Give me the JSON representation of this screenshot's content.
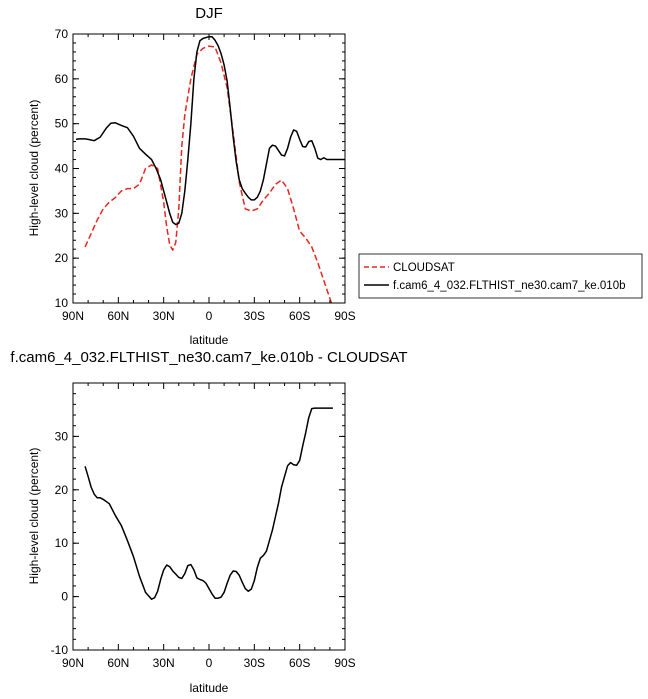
{
  "chart_data": [
    {
      "type": "line",
      "title": "DJF",
      "xlabel": "latitude",
      "ylabel": "High-level cloud (percent)",
      "xlim": [
        90,
        -90
      ],
      "ylim": [
        10,
        70
      ],
      "xticks": [
        90,
        60,
        30,
        0,
        -30,
        -60,
        -90
      ],
      "xtick_labels": [
        "90N",
        "60N",
        "30N",
        "0",
        "30S",
        "60S",
        "90S"
      ],
      "yticks": [
        10,
        20,
        30,
        40,
        50,
        60,
        70
      ],
      "ytick_labels": [
        "10",
        "20",
        "30",
        "40",
        "50",
        "60",
        "70"
      ],
      "legend_position": "right",
      "series": [
        {
          "name": "CLOUDSAT",
          "color": "#e8261e",
          "dash": "dashed",
          "x": [
            82,
            78,
            74,
            70,
            66,
            62,
            58,
            54,
            50,
            46,
            42,
            38,
            34,
            30,
            28,
            26,
            24,
            22,
            20,
            18,
            16,
            12,
            8,
            4,
            0,
            -4,
            -8,
            -12,
            -16,
            -20,
            -24,
            -28,
            -32,
            -36,
            -40,
            -44,
            -48,
            -52,
            -56,
            -60,
            -64,
            -68,
            -72,
            -76,
            -80,
            -82
          ],
          "y": [
            22.5,
            25.5,
            28.5,
            31,
            32.5,
            33.5,
            35,
            35.5,
            35.5,
            36.5,
            40,
            40.8,
            40,
            32.5,
            27,
            23,
            21.8,
            23.5,
            31,
            45,
            52,
            60,
            65.5,
            66.8,
            67.3,
            67.1,
            63.5,
            58,
            48,
            37,
            31,
            30.5,
            31,
            33,
            34.5,
            36.5,
            37.4,
            35.5,
            31,
            26,
            24.5,
            22.5,
            19,
            15,
            11,
            9
          ]
        },
        {
          "name": "f.cam6_4_032.FLTHIST_ne30.cam7_ke.010b",
          "color": "#000000",
          "dash": "solid",
          "x": [
            88,
            86,
            84,
            82,
            80,
            76,
            72,
            68,
            65,
            62,
            58,
            54,
            50,
            46,
            42,
            38,
            35,
            32,
            30,
            28,
            26,
            24,
            22,
            20,
            18,
            16,
            14,
            12,
            10,
            8,
            6,
            4,
            2,
            0,
            -2,
            -4,
            -6,
            -8,
            -10,
            -12,
            -14,
            -16,
            -18,
            -20,
            -22,
            -24,
            -26,
            -28,
            -30,
            -32,
            -34,
            -36,
            -38,
            -40,
            -42,
            -44,
            -46,
            -48,
            -50,
            -52,
            -54,
            -56,
            -58,
            -60,
            -62,
            -64,
            -66,
            -68,
            -70,
            -72,
            -74,
            -76,
            -78,
            -80,
            -82,
            -84,
            -86,
            -88,
            -90
          ],
          "y": [
            46.5,
            46.6,
            46.6,
            46.6,
            46.5,
            46.2,
            47,
            49,
            50.1,
            50.2,
            49.6,
            49.1,
            47.2,
            44.5,
            43.2,
            42,
            40,
            37.5,
            35,
            32.5,
            30,
            28,
            27.5,
            27.8,
            30,
            35,
            42,
            50,
            60,
            66,
            68.5,
            69,
            69.2,
            69.4,
            69.4,
            68.6,
            67.4,
            65.6,
            63.1,
            59.5,
            53.5,
            47,
            41.5,
            37.5,
            35.5,
            34.5,
            33.6,
            33,
            33,
            33.6,
            35,
            37.5,
            41,
            44.5,
            45.2,
            45,
            44,
            43,
            42.8,
            44.5,
            47,
            48.6,
            48.3,
            46.5,
            44.9,
            44.8,
            46,
            46.2,
            44.5,
            42.3,
            42,
            42.4,
            42,
            42,
            42,
            42,
            42,
            42,
            42
          ]
        }
      ]
    },
    {
      "type": "line",
      "title": "f.cam6_4_032.FLTHIST_ne30.cam7_ke.010b - CLOUDSAT",
      "xlabel": "latitude",
      "ylabel": "High-level cloud (percent)",
      "xlim": [
        90,
        -90
      ],
      "ylim": [
        -10,
        40
      ],
      "xticks": [
        90,
        60,
        30,
        0,
        -30,
        -60,
        -90
      ],
      "xtick_labels": [
        "90N",
        "60N",
        "30N",
        "0",
        "30S",
        "60S",
        "90S"
      ],
      "yticks": [
        -10,
        0,
        10,
        20,
        30
      ],
      "ytick_labels": [
        "-10",
        "0",
        "10",
        "20",
        "30"
      ],
      "series": [
        {
          "color": "#000000",
          "dash": "solid",
          "x": [
            82,
            80,
            78,
            76,
            74,
            72,
            70,
            66,
            62,
            58,
            54,
            50,
            46,
            42,
            38,
            36,
            34,
            32,
            30,
            28,
            26,
            24,
            22,
            20,
            18,
            16,
            14,
            12,
            10,
            8,
            6,
            4,
            2,
            0,
            -2,
            -4,
            -6,
            -8,
            -10,
            -12,
            -14,
            -16,
            -18,
            -20,
            -22,
            -24,
            -26,
            -28,
            -30,
            -32,
            -34,
            -36,
            -38,
            -40,
            -42,
            -44,
            -46,
            -48,
            -50,
            -52,
            -54,
            -56,
            -58,
            -60,
            -62,
            -64,
            -66,
            -68,
            -70,
            -72,
            -74,
            -76,
            -78,
            -80,
            -82
          ],
          "y": [
            24.4,
            22.5,
            20.5,
            19.2,
            18.5,
            18.5,
            18.2,
            17.4,
            15.2,
            13.3,
            10.5,
            7.5,
            3.8,
            0.8,
            -0.5,
            -0.2,
            1,
            3.2,
            5,
            5.9,
            5.6,
            4.8,
            4.2,
            3.6,
            3.4,
            4.3,
            5.8,
            6,
            5,
            3.5,
            3.2,
            3,
            2.5,
            1.5,
            0.5,
            -0.3,
            -0.3,
            -0.1,
            0.8,
            2.5,
            4,
            4.8,
            4.7,
            4,
            2.7,
            1.5,
            1,
            1.4,
            3,
            5.5,
            7.2,
            7.7,
            8.5,
            10.5,
            12.5,
            15,
            17.5,
            20.5,
            22.5,
            24.5,
            25.1,
            24.7,
            24.6,
            25.5,
            28.2,
            30.7,
            33.5,
            35.2,
            35.3,
            35.3,
            35.3,
            35.3,
            35.3,
            35.3,
            35.3
          ]
        }
      ]
    }
  ]
}
